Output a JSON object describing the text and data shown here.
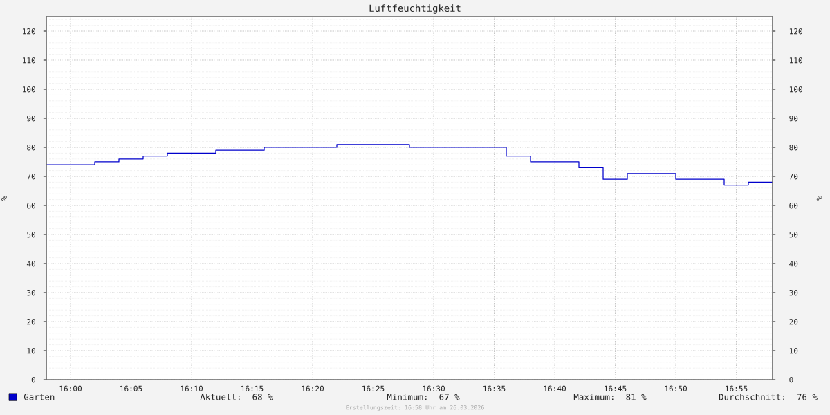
{
  "chart_data": {
    "type": "step",
    "title": "Luftfeuchtigkeit",
    "ylabel": "%",
    "y2label": "%",
    "x": [
      "2026-03-26T15:58",
      "2026-03-26T16:02",
      "2026-03-26T16:04",
      "2026-03-26T16:06",
      "2026-03-26T16:08",
      "2026-03-26T16:12",
      "2026-03-26T16:16",
      "2026-03-26T16:22",
      "2026-03-26T16:28",
      "2026-03-26T16:36",
      "2026-03-26T16:38",
      "2026-03-26T16:42",
      "2026-03-26T16:44",
      "2026-03-26T16:46",
      "2026-03-26T16:50",
      "2026-03-26T16:54",
      "2026-03-26T16:56",
      "2026-03-26T16:58"
    ],
    "series": [
      {
        "name": "Garten",
        "color": "#0000cc",
        "values": [
          74,
          75,
          76,
          77,
          78,
          79,
          80,
          81,
          80,
          77,
          75,
          73,
          69,
          71,
          69,
          67,
          68,
          68
        ]
      }
    ],
    "xlim": [
      "2026-03-26T15:58",
      "2026-03-26T16:58"
    ],
    "xticks": [
      {
        "value": "2026-03-26T16:00",
        "label": "16:00"
      },
      {
        "value": "2026-03-26T16:05",
        "label": "16:05"
      },
      {
        "value": "2026-03-26T16:10",
        "label": "16:10"
      },
      {
        "value": "2026-03-26T16:15",
        "label": "16:15"
      },
      {
        "value": "2026-03-26T16:20",
        "label": "16:20"
      },
      {
        "value": "2026-03-26T16:25",
        "label": "16:25"
      },
      {
        "value": "2026-03-26T16:30",
        "label": "16:30"
      },
      {
        "value": "2026-03-26T16:35",
        "label": "16:35"
      },
      {
        "value": "2026-03-26T16:40",
        "label": "16:40"
      },
      {
        "value": "2026-03-26T16:45",
        "label": "16:45"
      },
      {
        "value": "2026-03-26T16:50",
        "label": "16:50"
      },
      {
        "value": "2026-03-26T16:55",
        "label": "16:55"
      }
    ],
    "ylim": [
      0,
      125
    ],
    "yticks": [
      0,
      10,
      20,
      30,
      40,
      50,
      60,
      70,
      80,
      90,
      100,
      110,
      120
    ],
    "y2lim": [
      0,
      125
    ],
    "y2ticks": [
      0,
      10,
      20,
      30,
      40,
      50,
      60,
      70,
      80,
      90,
      100,
      110,
      120
    ],
    "grid": true,
    "legend": "bottom left",
    "line_style": "solid",
    "annotations": [
      "Aktuell:  68 %",
      "Minimum:  67 %",
      "Maximum:  81 %",
      "Durchschnitt:  76 %",
      "Erstellungszeit: 16:58 Uhr am 26.03.2026"
    ]
  }
}
